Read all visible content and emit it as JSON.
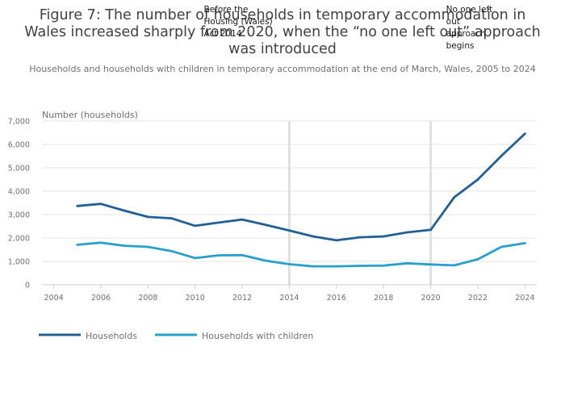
{
  "chart_data": {
    "type": "line",
    "title_lines": [
      "Figure 7: The number of households in temporary accommodation in",
      "Wales increased sharply from 2020, when the “no one left out” approach",
      "was introduced"
    ],
    "subtitle": "Households and households with children in temporary accommodation at the end of March, Wales, 2005 to 2024",
    "ylabel": "Number (households)",
    "xlim": [
      2003.5,
      2024.5
    ],
    "ylim": [
      0,
      7000
    ],
    "xticks": [
      2004,
      2006,
      2008,
      2010,
      2012,
      2014,
      2016,
      2018,
      2020,
      2022,
      2024
    ],
    "yticks": [
      0,
      1000,
      2000,
      3000,
      4000,
      5000,
      6000,
      7000
    ],
    "ytick_labels": [
      "0",
      "1,000",
      "2,000",
      "3,000",
      "4,000",
      "5,000",
      "6,000",
      "7,000"
    ],
    "x": [
      2005,
      2006,
      2007,
      2008,
      2009,
      2010,
      2011,
      2012,
      2013,
      2014,
      2015,
      2016,
      2017,
      2018,
      2019,
      2020,
      2021,
      2022,
      2023,
      2024
    ],
    "series": [
      {
        "name": "Households",
        "color": "#206095",
        "values": [
          3370,
          3460,
          3170,
          2900,
          2840,
          2520,
          2660,
          2790,
          2560,
          2320,
          2070,
          1900,
          2030,
          2070,
          2240,
          2350,
          3740,
          4500,
          5510,
          6460
        ]
      },
      {
        "name": "Households with children",
        "color": "#27a0cc",
        "values": [
          1710,
          1800,
          1670,
          1620,
          1440,
          1140,
          1260,
          1270,
          1030,
          880,
          790,
          790,
          810,
          820,
          920,
          870,
          830,
          1090,
          1620,
          1780
        ]
      }
    ],
    "annotations": [
      {
        "x": 2014,
        "lines": [
          "Before the",
          "Housing (Wales)",
          "Act 2014"
        ]
      },
      {
        "x": 2020,
        "lines": [
          "No one left",
          "out",
          "approach",
          "begins"
        ]
      }
    ],
    "legend_position": "bottom-left"
  }
}
